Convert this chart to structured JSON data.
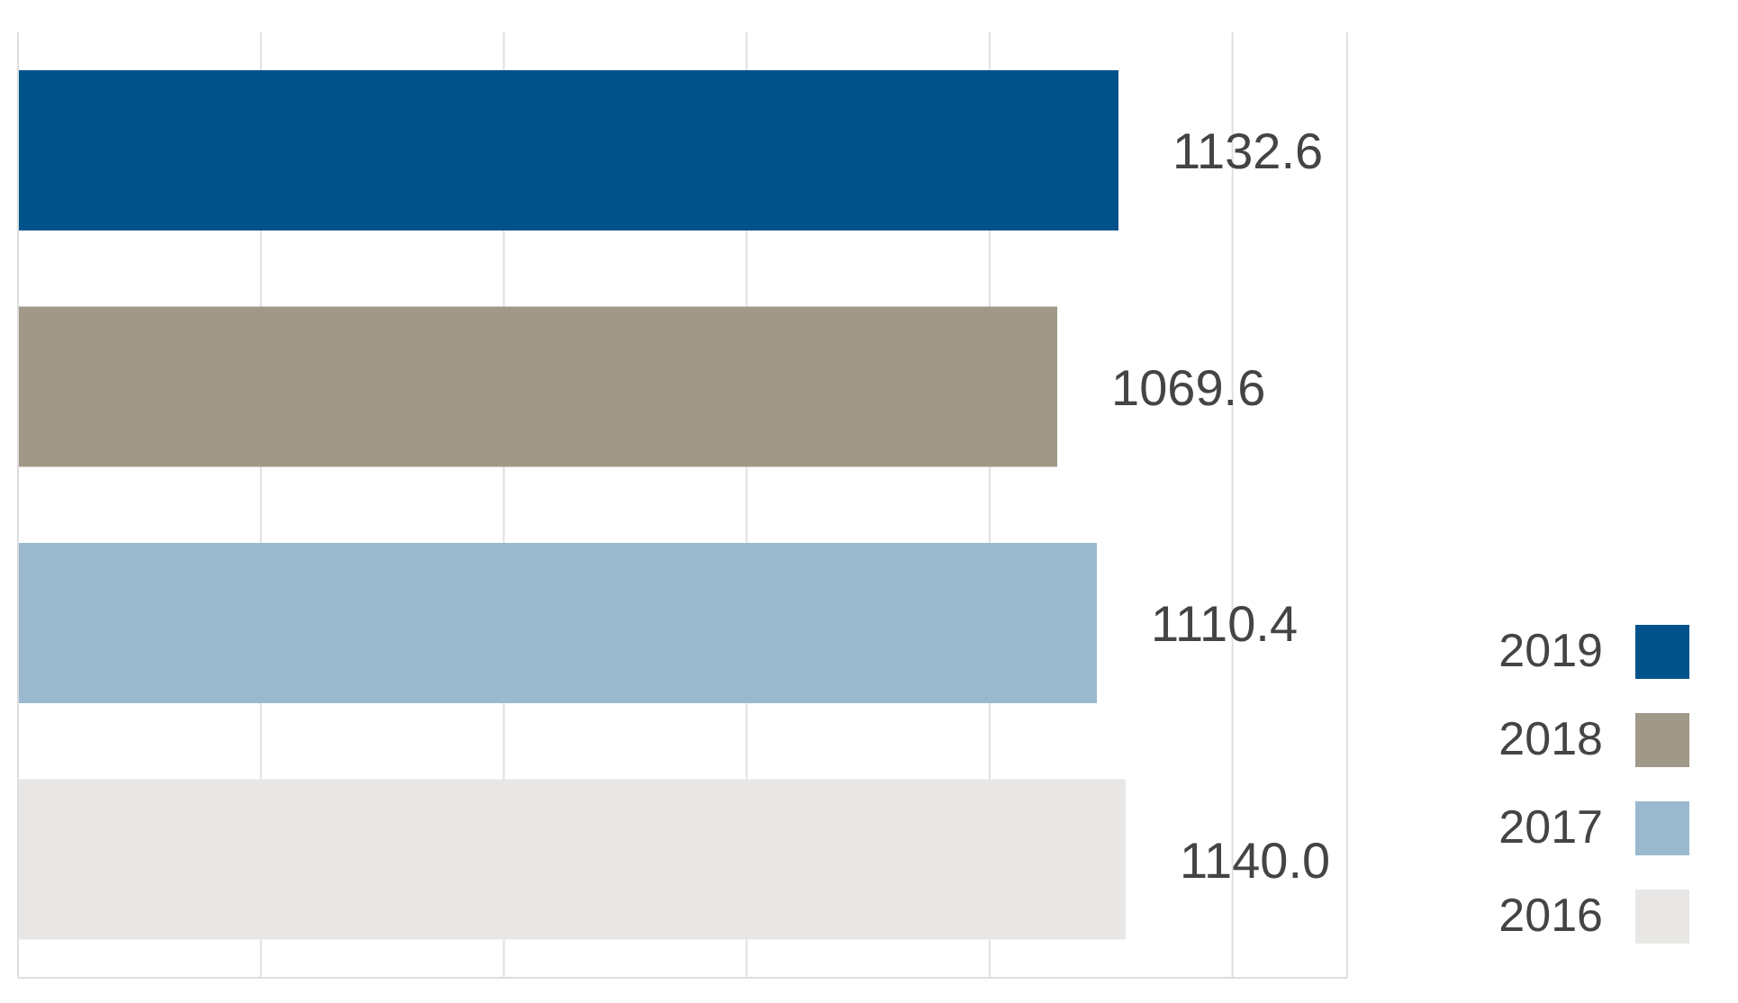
{
  "chart_data": {
    "type": "bar",
    "orientation": "horizontal",
    "stacked": true,
    "categories": [
      null,
      null,
      null,
      null
    ],
    "series": [
      {
        "name": "2019",
        "color": "#00528a",
        "values": [
          1132.6,
          null,
          null,
          null
        ],
        "value_labels": [
          "1132.6",
          null,
          null,
          null
        ]
      },
      {
        "name": "2018",
        "color": "#a09888",
        "values": [
          null,
          1069.6,
          null,
          null
        ],
        "value_labels": [
          null,
          "1069.6",
          null,
          null
        ]
      },
      {
        "name": "2017",
        "color": "#9ab9cf",
        "values": [
          null,
          null,
          1110.4,
          null
        ],
        "value_labels": [
          null,
          null,
          "1110.4",
          null
        ]
      },
      {
        "name": "2016",
        "color": "#e8e7e5",
        "values": [
          null,
          null,
          null,
          1140.0
        ],
        "value_labels": [
          null,
          null,
          null,
          "1140.0"
        ]
      }
    ],
    "grid": "x",
    "legend": "bottom right",
    "tick_labels": false
  }
}
